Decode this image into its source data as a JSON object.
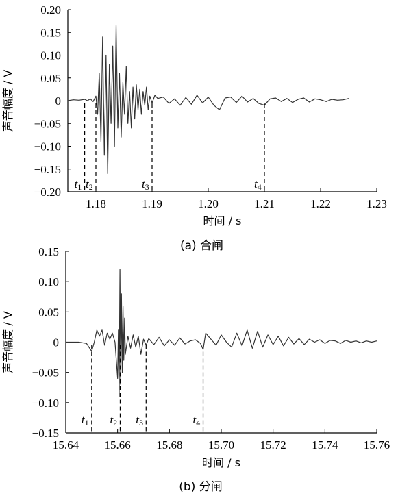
{
  "chart_data": [
    {
      "type": "line",
      "caption": "(a)  合闸",
      "xlabel": "时间 / s",
      "ylabel": "声音幅度 / V",
      "xlim": [
        1.175,
        1.23
      ],
      "ylim": [
        -0.2,
        0.2
      ],
      "xticks": [
        1.18,
        1.19,
        1.2,
        1.21,
        1.22,
        1.23
      ],
      "xtick_labels": [
        "1.18",
        "1.19",
        "1.20",
        "1.21",
        "1.22",
        "1.23"
      ],
      "yticks": [
        0.2,
        0.15,
        0.1,
        0.05,
        0,
        -0.05,
        -0.1,
        -0.15,
        -0.2
      ],
      "ytick_labels": [
        "0.20",
        "0.15",
        "0.10",
        "0.05",
        "0",
        "−0.05",
        "−0.10",
        "−0.15",
        "−0.20"
      ],
      "grid": false,
      "markers": [
        {
          "label": "t",
          "sub": "1",
          "x": 1.178
        },
        {
          "label": "t",
          "sub": "2",
          "x": 1.18
        },
        {
          "label": "t",
          "sub": "3",
          "x": 1.19
        },
        {
          "label": "t",
          "sub": "4",
          "x": 1.21
        }
      ],
      "series": [
        {
          "x": [
            1.175,
            1.176,
            1.177,
            1.178,
            1.1785,
            1.179,
            1.1795,
            1.18,
            1.1803,
            1.1806,
            1.1809,
            1.1812,
            1.1815,
            1.1818,
            1.1821,
            1.1824,
            1.1827,
            1.183,
            1.1833,
            1.1836,
            1.1839,
            1.1842,
            1.1845,
            1.1848,
            1.1851,
            1.1854,
            1.1857,
            1.186,
            1.1863,
            1.1866,
            1.1869,
            1.1872,
            1.1875,
            1.1878,
            1.1881,
            1.1884,
            1.1887,
            1.189,
            1.1893,
            1.1896,
            1.19,
            1.1905,
            1.191,
            1.192,
            1.193,
            1.194,
            1.195,
            1.196,
            1.197,
            1.198,
            1.199,
            1.2,
            1.201,
            1.202,
            1.203,
            1.204,
            1.205,
            1.206,
            1.207,
            1.208,
            1.209,
            1.21,
            1.211,
            1.212,
            1.213,
            1.214,
            1.215,
            1.216,
            1.217,
            1.218,
            1.219,
            1.22,
            1.221,
            1.222,
            1.223,
            1.224,
            1.225
          ],
          "y": [
            0,
            0.002,
            0.001,
            0.003,
            0,
            0.004,
            -0.002,
            0.01,
            -0.03,
            0.06,
            -0.09,
            0.14,
            -0.12,
            0.1,
            -0.16,
            0.08,
            -0.05,
            0.12,
            -0.1,
            0.165,
            -0.06,
            0.06,
            -0.08,
            0.04,
            -0.03,
            0.075,
            -0.05,
            0.02,
            -0.06,
            0.03,
            -0.04,
            0.035,
            -0.02,
            0.025,
            -0.03,
            0.02,
            -0.01,
            0.03,
            -0.02,
            0.01,
            -0.005,
            0.012,
            0.005,
            0.008,
            -0.006,
            0.004,
            -0.01,
            0.007,
            -0.008,
            0.012,
            -0.005,
            0.008,
            -0.01,
            -0.02,
            0.006,
            0.008,
            -0.004,
            0.01,
            -0.003,
            0.005,
            -0.006,
            -0.01,
            0.004,
            0.006,
            -0.002,
            0.005,
            -0.004,
            0.003,
            0.006,
            -0.003,
            0.004,
            0.002,
            -0.002,
            0.003,
            0.001,
            0.002,
            0.005
          ]
        }
      ]
    },
    {
      "type": "line",
      "caption": "(b)  分闸",
      "xlabel": "时间 / s",
      "ylabel": "声音幅度 / V",
      "xlim": [
        15.64,
        15.76
      ],
      "ylim": [
        -0.15,
        0.15
      ],
      "xticks": [
        15.64,
        15.66,
        15.68,
        15.7,
        15.72,
        15.74,
        15.76
      ],
      "xtick_labels": [
        "15.64",
        "15.66",
        "15.68",
        "15.70",
        "15.72",
        "15.74",
        "15.76"
      ],
      "yticks": [
        0.15,
        0.1,
        0.05,
        0,
        -0.05,
        -0.1,
        -0.15
      ],
      "ytick_labels": [
        "0.15",
        "0.10",
        "0.05",
        "0",
        "−0.05",
        "−0.10",
        "−0.15"
      ],
      "grid": false,
      "markers": [
        {
          "label": "t",
          "sub": "1",
          "x": 15.65
        },
        {
          "label": "t",
          "sub": "2",
          "x": 15.661
        },
        {
          "label": "t",
          "sub": "3",
          "x": 15.671
        },
        {
          "label": "t",
          "sub": "4",
          "x": 15.693
        }
      ],
      "series": [
        {
          "x": [
            15.64,
            15.645,
            15.648,
            15.65,
            15.651,
            15.652,
            15.653,
            15.654,
            15.655,
            15.656,
            15.657,
            15.658,
            15.659,
            15.6595,
            15.66,
            15.6603,
            15.6606,
            15.6609,
            15.6612,
            15.6615,
            15.6618,
            15.6621,
            15.6624,
            15.6627,
            15.663,
            15.664,
            15.665,
            15.666,
            15.667,
            15.668,
            15.669,
            15.67,
            15.671,
            15.672,
            15.674,
            15.676,
            15.678,
            15.68,
            15.682,
            15.684,
            15.686,
            15.688,
            15.69,
            15.692,
            15.693,
            15.694,
            15.696,
            15.698,
            15.7,
            15.702,
            15.704,
            15.706,
            15.708,
            15.71,
            15.712,
            15.714,
            15.716,
            15.718,
            15.72,
            15.722,
            15.724,
            15.726,
            15.728,
            15.73,
            15.732,
            15.734,
            15.736,
            15.738,
            15.74,
            15.742,
            15.744,
            15.746,
            15.748,
            15.75,
            15.752,
            15.754,
            15.756,
            15.758,
            15.76
          ],
          "y": [
            0,
            0,
            -0.002,
            -0.015,
            0,
            0.02,
            0.01,
            0.02,
            -0.005,
            0.015,
            0.005,
            0.015,
            0,
            -0.03,
            -0.06,
            0.02,
            -0.09,
            0.12,
            -0.07,
            0.08,
            -0.05,
            0.06,
            -0.03,
            0.04,
            -0.02,
            0.01,
            -0.01,
            0.012,
            -0.008,
            0.01,
            -0.02,
            0.005,
            -0.005,
            0.006,
            -0.004,
            0.008,
            -0.006,
            0.004,
            -0.005,
            0.007,
            -0.003,
            0.002,
            0.004,
            -0.002,
            -0.012,
            0.015,
            0.005,
            -0.005,
            0.012,
            0,
            -0.008,
            0.015,
            -0.006,
            0.02,
            -0.01,
            0.018,
            -0.008,
            0.012,
            -0.004,
            0.01,
            -0.006,
            0.008,
            -0.003,
            0.006,
            -0.004,
            0.005,
            0,
            0.004,
            -0.002,
            0.003,
            0.002,
            -0.002,
            0.003,
            0,
            0.002,
            -0.001,
            0.002,
            0,
            0.002
          ]
        }
      ]
    }
  ]
}
